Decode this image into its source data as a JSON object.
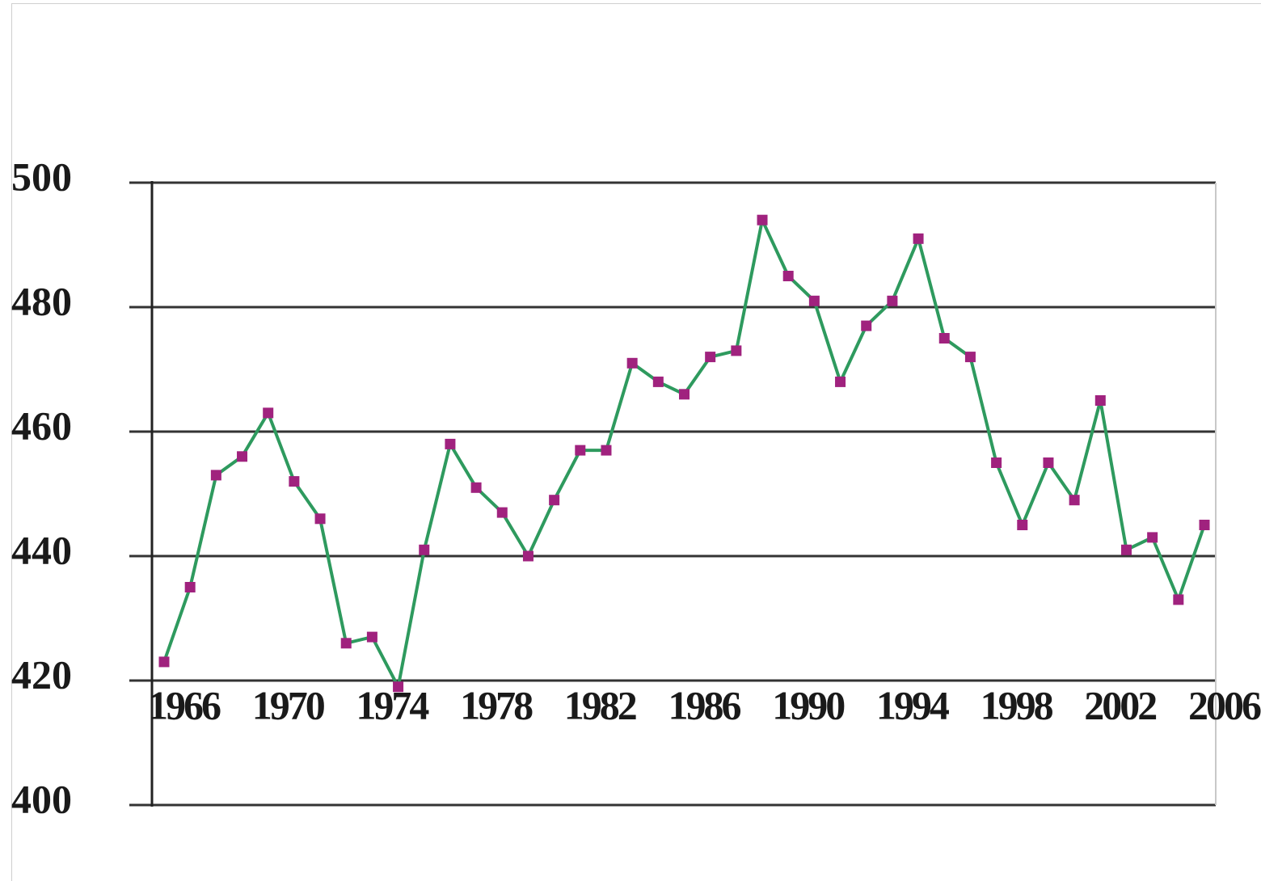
{
  "chart_data": {
    "type": "line",
    "title": "",
    "xlabel": "",
    "ylabel": "",
    "ylim": [
      400,
      500
    ],
    "xlim": [
      1966,
      2006
    ],
    "y_ticks": [
      400,
      420,
      440,
      460,
      480,
      500
    ],
    "x_ticks": [
      1966,
      1970,
      1974,
      1978,
      1982,
      1986,
      1990,
      1994,
      1998,
      2002,
      2006
    ],
    "grid": true,
    "legend": "none",
    "line_color": "#2e9a5e",
    "marker_color": "#a0227e",
    "series": [
      {
        "x": [
          1966,
          1967,
          1968,
          1969,
          1970,
          1971,
          1972,
          1973,
          1974,
          1975,
          1976,
          1977,
          1978,
          1979,
          1980,
          1981,
          1982,
          1983,
          1984,
          1985,
          1986,
          1987,
          1988,
          1989,
          1990,
          1991,
          1992,
          1993,
          1994,
          1995,
          1996,
          1997,
          1998,
          1999,
          2000,
          2001,
          2002,
          2003,
          2004,
          2005,
          2006
        ],
        "values": [
          423,
          435,
          453,
          456,
          463,
          452,
          446,
          426,
          427,
          419,
          441,
          458,
          451,
          447,
          440,
          449,
          457,
          457,
          471,
          468,
          466,
          472,
          473,
          494,
          485,
          481,
          468,
          477,
          481,
          491,
          475,
          472,
          455,
          445,
          455,
          449,
          465,
          441,
          443,
          433,
          445
        ]
      }
    ]
  }
}
